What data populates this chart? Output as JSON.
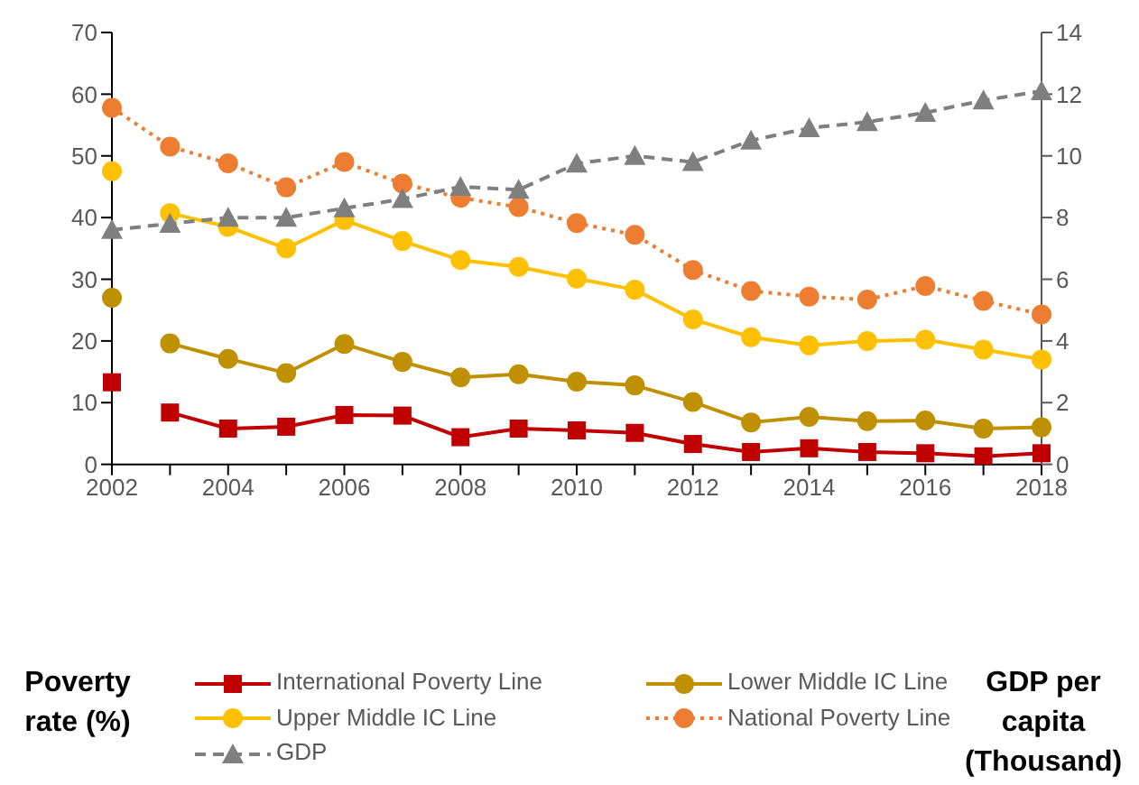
{
  "chart_data": {
    "type": "line",
    "annotations": [
      "Poverty rate (%)",
      "GDP per capita (Thousand)"
    ],
    "categories": [
      "2002",
      null,
      "2004",
      null,
      "2006",
      null,
      "2008",
      null,
      "2010",
      null,
      "2012",
      null,
      "2014",
      null,
      "2016",
      null,
      "2018"
    ],
    "ylim": [
      0,
      70
    ],
    "yticks": [
      0,
      10,
      20,
      30,
      40,
      50,
      60,
      70
    ],
    "y2lim": [
      0,
      14
    ],
    "y2ticks": [
      0,
      2,
      4,
      6,
      8,
      10,
      12,
      14
    ],
    "legend": "bottom",
    "line_style": "solid",
    "series": [
      {
        "name": "International Poverty Line",
        "color": "#c00000",
        "marker": "square",
        "values": [
          null,
          8.4,
          5.8,
          6.1,
          8.0,
          7.9,
          4.4,
          5.8,
          5.5,
          5.1,
          3.3,
          2.0,
          2.6,
          2.0,
          1.8,
          1.3,
          1.8
        ]
      },
      {
        "name": "Lower Middle IC Line",
        "color": "#bf9000",
        "marker": "circle",
        "values": [
          null,
          19.6,
          17.1,
          14.8,
          19.5,
          16.6,
          14.1,
          14.6,
          13.4,
          12.8,
          10.1,
          6.8,
          7.7,
          7.0,
          7.1,
          5.8,
          6.0
        ]
      },
      {
        "name": "Upper Middle IC Line",
        "color": "#ffc000",
        "marker": "circle",
        "values": [
          null,
          40.7,
          38.5,
          35.0,
          39.6,
          36.2,
          33.1,
          32.0,
          30.1,
          28.3,
          23.5,
          20.6,
          19.3,
          20.0,
          20.2,
          18.6,
          17.0
        ]
      },
      {
        "name": "National Poverty Line",
        "color": "#ed7d31",
        "marker": "circle",
        "line_style": "dotted",
        "values": [
          57.8,
          51.5,
          48.8,
          44.9,
          49.0,
          45.5,
          43.2,
          41.7,
          39.1,
          37.2,
          31.5,
          28.1,
          27.2,
          26.7,
          28.9,
          26.5,
          24.3
        ]
      },
      {
        "name": "GDP",
        "color": "#7f7f7f",
        "marker": "triangle",
        "line_style": "dashed",
        "axis": "y2",
        "values": [
          7.6,
          7.8,
          8.0,
          8.0,
          8.3,
          8.6,
          9.0,
          8.9,
          9.75,
          10.0,
          9.8,
          10.5,
          10.9,
          11.1,
          11.4,
          11.8,
          12.1
        ]
      },
      {
        "type": "scatter",
        "color": "#c00000",
        "marker": "square",
        "values": [
          13.3,
          null,
          null,
          null,
          null,
          null,
          null,
          null,
          null,
          null,
          null,
          null,
          null,
          null,
          null,
          null,
          null
        ]
      },
      {
        "type": "scatter",
        "color": "#bf9000",
        "marker": "circle",
        "values": [
          27.0,
          null,
          null,
          null,
          null,
          null,
          null,
          null,
          null,
          null,
          null,
          null,
          null,
          null,
          null,
          null,
          null
        ]
      },
      {
        "type": "scatter",
        "color": "#ffc000",
        "marker": "circle",
        "values": [
          47.5,
          null,
          null,
          null,
          null,
          null,
          null,
          null,
          null,
          null,
          null,
          null,
          null,
          null,
          null,
          null,
          null
        ]
      }
    ]
  }
}
